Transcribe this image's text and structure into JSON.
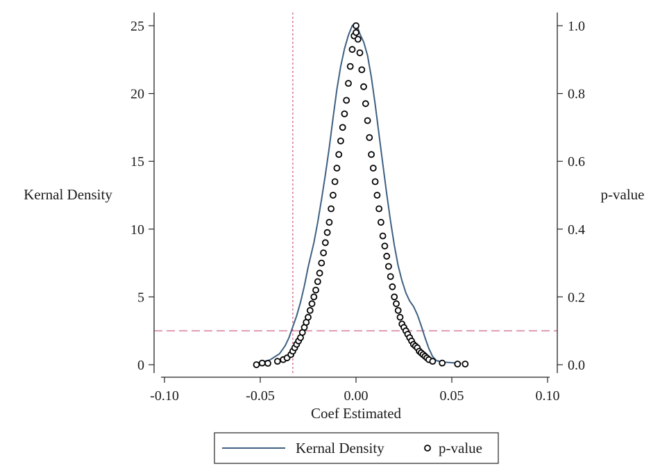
{
  "chart_data": {
    "type": "line",
    "xlabel": "Coef Estimated",
    "ylabel_left": "Kernal Density",
    "ylabel_right": "p-value",
    "xlim": [
      -0.1,
      0.1
    ],
    "ylim_left": [
      0,
      25
    ],
    "ylim_right": [
      0,
      1.0
    ],
    "x_ticks": [
      -0.1,
      -0.05,
      0.0,
      0.05,
      0.1
    ],
    "x_tick_labels": [
      "-0.10",
      "-0.05",
      "0.00",
      "0.05",
      "0.10"
    ],
    "y_left_ticks": [
      0,
      5,
      10,
      15,
      20,
      25
    ],
    "y_left_tick_labels": [
      "0",
      "5",
      "10",
      "15",
      "20",
      "25"
    ],
    "y_right_ticks": [
      0,
      0.2,
      0.4,
      0.6,
      0.8,
      1.0
    ],
    "y_right_tick_labels": [
      "0.0",
      "0.2",
      "0.4",
      "0.6",
      "0.8",
      "1.0"
    ],
    "grid": false,
    "legend_position": "bottom",
    "reference_lines": {
      "vertical_x": -0.033,
      "horizontal_p": 0.1,
      "color": "#c8527a"
    },
    "series": [
      {
        "name": "Kernal Density",
        "kind": "line",
        "axis": "left",
        "color": "#3d5f80",
        "x": [
          -0.052,
          -0.045,
          -0.04,
          -0.037,
          -0.035,
          -0.033,
          -0.031,
          -0.029,
          -0.027,
          -0.025,
          -0.022,
          -0.02,
          -0.018,
          -0.016,
          -0.014,
          -0.012,
          -0.01,
          -0.008,
          -0.006,
          -0.004,
          -0.002,
          -0.001,
          0.0,
          0.001,
          0.002,
          0.004,
          0.006,
          0.008,
          0.01,
          0.012,
          0.014,
          0.016,
          0.018,
          0.02,
          0.022,
          0.024,
          0.026,
          0.028,
          0.03,
          0.032,
          0.034,
          0.036,
          0.038,
          0.04,
          0.042,
          0.045,
          0.05,
          0.055
        ],
        "y": [
          0.1,
          0.35,
          0.8,
          1.4,
          2.0,
          2.8,
          3.6,
          4.6,
          5.8,
          7.2,
          9.0,
          10.5,
          12.2,
          14.0,
          16.0,
          18.2,
          20.3,
          22.0,
          23.3,
          24.3,
          25.0,
          25.1,
          25.1,
          24.8,
          24.4,
          23.8,
          22.8,
          21.2,
          19.2,
          17.0,
          14.8,
          12.6,
          10.6,
          8.8,
          7.3,
          6.2,
          5.3,
          4.7,
          4.3,
          3.7,
          2.9,
          2.0,
          1.2,
          0.6,
          0.3,
          0.2,
          0.15,
          0.1
        ]
      },
      {
        "name": "p-value",
        "kind": "scatter",
        "axis": "right",
        "color": "#000000",
        "x": [
          -0.052,
          -0.049,
          -0.046,
          -0.041,
          -0.038,
          -0.036,
          -0.034,
          -0.033,
          -0.032,
          -0.031,
          -0.03,
          -0.029,
          -0.028,
          -0.027,
          -0.026,
          -0.025,
          -0.024,
          -0.023,
          -0.022,
          -0.021,
          -0.02,
          -0.019,
          -0.018,
          -0.017,
          -0.016,
          -0.015,
          -0.014,
          -0.013,
          -0.012,
          -0.011,
          -0.01,
          -0.009,
          -0.008,
          -0.007,
          -0.006,
          -0.005,
          -0.004,
          -0.003,
          -0.002,
          -0.001,
          0.0,
          0.0,
          0.001,
          0.002,
          0.003,
          0.004,
          0.005,
          0.006,
          0.007,
          0.008,
          0.009,
          0.01,
          0.011,
          0.012,
          0.013,
          0.014,
          0.015,
          0.016,
          0.017,
          0.018,
          0.019,
          0.02,
          0.021,
          0.022,
          0.023,
          0.024,
          0.025,
          0.026,
          0.027,
          0.028,
          0.029,
          0.03,
          0.031,
          0.032,
          0.033,
          0.034,
          0.035,
          0.036,
          0.037,
          0.038,
          0.04,
          0.045,
          0.053,
          0.057
        ],
        "y": [
          0.0,
          0.005,
          0.004,
          0.01,
          0.015,
          0.02,
          0.03,
          0.04,
          0.05,
          0.06,
          0.07,
          0.08,
          0.095,
          0.11,
          0.125,
          0.14,
          0.16,
          0.18,
          0.2,
          0.22,
          0.245,
          0.27,
          0.3,
          0.33,
          0.36,
          0.39,
          0.42,
          0.46,
          0.5,
          0.54,
          0.58,
          0.62,
          0.66,
          0.7,
          0.74,
          0.78,
          0.83,
          0.88,
          0.93,
          0.97,
          1.0,
          0.98,
          0.96,
          0.92,
          0.87,
          0.82,
          0.77,
          0.72,
          0.67,
          0.62,
          0.58,
          0.54,
          0.5,
          0.46,
          0.42,
          0.38,
          0.35,
          0.32,
          0.29,
          0.26,
          0.23,
          0.2,
          0.18,
          0.16,
          0.14,
          0.12,
          0.11,
          0.1,
          0.09,
          0.08,
          0.07,
          0.06,
          0.055,
          0.05,
          0.04,
          0.035,
          0.03,
          0.025,
          0.02,
          0.015,
          0.01,
          0.005,
          0.002,
          0.002
        ]
      }
    ]
  }
}
